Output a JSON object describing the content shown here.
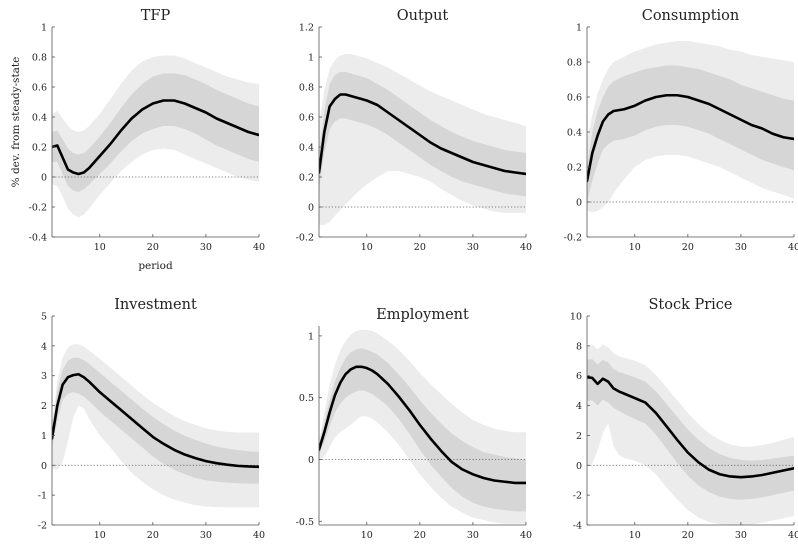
{
  "chart_data": [
    {
      "type": "line",
      "title": "TFP",
      "xlabel": "period",
      "ylabel": "% dev. from steady-state",
      "xlim": [
        1,
        40
      ],
      "ylim": [
        -0.4,
        1
      ],
      "xticks": [
        10,
        20,
        30,
        40
      ],
      "yticks": [
        -0.4,
        -0.2,
        0,
        0.2,
        0.4,
        0.6,
        0.8,
        1
      ],
      "ytick_labels": [
        "-0.4",
        "-0.2",
        "0",
        "0.2",
        "0.4",
        "0.6",
        "0.8",
        "1"
      ],
      "x": [
        1,
        2,
        3,
        4,
        5,
        6,
        7,
        8,
        10,
        12,
        14,
        16,
        18,
        20,
        22,
        24,
        26,
        28,
        30,
        32,
        34,
        36,
        38,
        40
      ],
      "series": [
        {
          "median": [
            0.2,
            0.21,
            0.13,
            0.05,
            0.03,
            0.02,
            0.03,
            0.06,
            0.14,
            0.22,
            0.31,
            0.39,
            0.45,
            0.49,
            0.51,
            0.51,
            0.49,
            0.46,
            0.43,
            0.39,
            0.36,
            0.33,
            0.3,
            0.28
          ],
          "inner_upper": [
            0.3,
            0.31,
            0.25,
            0.19,
            0.16,
            0.15,
            0.16,
            0.19,
            0.27,
            0.36,
            0.46,
            0.55,
            0.62,
            0.67,
            0.69,
            0.69,
            0.68,
            0.65,
            0.62,
            0.58,
            0.55,
            0.52,
            0.49,
            0.47
          ],
          "inner_lower": [
            0.1,
            0.1,
            0.02,
            -0.06,
            -0.09,
            -0.1,
            -0.08,
            -0.05,
            0.02,
            0.09,
            0.17,
            0.24,
            0.29,
            0.32,
            0.34,
            0.34,
            0.32,
            0.29,
            0.25,
            0.21,
            0.18,
            0.15,
            0.12,
            0.1
          ],
          "outer_upper": [
            0.42,
            0.44,
            0.39,
            0.34,
            0.31,
            0.3,
            0.31,
            0.34,
            0.42,
            0.52,
            0.62,
            0.71,
            0.77,
            0.8,
            0.81,
            0.81,
            0.79,
            0.76,
            0.73,
            0.7,
            0.67,
            0.65,
            0.63,
            0.62
          ],
          "outer_lower": [
            -0.05,
            -0.06,
            -0.13,
            -0.21,
            -0.25,
            -0.27,
            -0.25,
            -0.21,
            -0.12,
            -0.04,
            0.04,
            0.1,
            0.15,
            0.18,
            0.19,
            0.18,
            0.15,
            0.12,
            0.09,
            0.06,
            0.03,
            0.0,
            -0.02,
            -0.03
          ]
        }
      ]
    },
    {
      "type": "line",
      "title": "Output",
      "xlabel": "",
      "ylabel": "",
      "xlim": [
        1,
        40
      ],
      "ylim": [
        -0.2,
        1.2
      ],
      "xticks": [
        10,
        20,
        30,
        40
      ],
      "yticks": [
        -0.2,
        0,
        0.2,
        0.4,
        0.6,
        0.8,
        1,
        1.2
      ],
      "ytick_labels": [
        "-0.2",
        "0",
        "0.2",
        "0.4",
        "0.6",
        "0.8",
        "1",
        "1.2"
      ],
      "x": [
        1,
        2,
        3,
        4,
        5,
        6,
        7,
        8,
        10,
        12,
        14,
        16,
        18,
        20,
        22,
        24,
        26,
        28,
        30,
        32,
        34,
        36,
        38,
        40
      ],
      "series": [
        {
          "median": [
            0.23,
            0.5,
            0.67,
            0.72,
            0.75,
            0.75,
            0.74,
            0.73,
            0.71,
            0.68,
            0.63,
            0.58,
            0.53,
            0.48,
            0.43,
            0.39,
            0.36,
            0.33,
            0.3,
            0.28,
            0.26,
            0.24,
            0.23,
            0.22
          ],
          "inner_upper": [
            0.35,
            0.64,
            0.82,
            0.88,
            0.9,
            0.9,
            0.89,
            0.88,
            0.86,
            0.82,
            0.78,
            0.73,
            0.68,
            0.63,
            0.58,
            0.54,
            0.5,
            0.47,
            0.44,
            0.42,
            0.4,
            0.38,
            0.37,
            0.36
          ],
          "inner_lower": [
            0.12,
            0.36,
            0.52,
            0.57,
            0.59,
            0.59,
            0.58,
            0.57,
            0.55,
            0.52,
            0.48,
            0.43,
            0.38,
            0.33,
            0.28,
            0.24,
            0.2,
            0.17,
            0.15,
            0.13,
            0.11,
            0.09,
            0.08,
            0.07
          ],
          "outer_upper": [
            0.55,
            0.78,
            0.92,
            0.98,
            1.01,
            1.02,
            1.02,
            1.01,
            0.99,
            0.96,
            0.93,
            0.89,
            0.85,
            0.81,
            0.77,
            0.74,
            0.71,
            0.68,
            0.65,
            0.62,
            0.6,
            0.58,
            0.56,
            0.54
          ],
          "outer_lower": [
            -0.12,
            -0.12,
            -0.1,
            -0.06,
            -0.02,
            0.02,
            0.05,
            0.09,
            0.15,
            0.2,
            0.24,
            0.24,
            0.22,
            0.2,
            0.17,
            0.12,
            0.08,
            0.04,
            0.01,
            -0.01,
            -0.03,
            -0.04,
            -0.04,
            -0.04
          ]
        }
      ]
    },
    {
      "type": "line",
      "title": "Consumption",
      "xlabel": "",
      "ylabel": "",
      "xlim": [
        1,
        40
      ],
      "ylim": [
        -0.2,
        1
      ],
      "xticks": [
        10,
        20,
        30,
        40
      ],
      "yticks": [
        -0.2,
        0,
        0.2,
        0.4,
        0.6,
        0.8,
        1
      ],
      "ytick_labels": [
        "-0.2",
        "0",
        "0.2",
        "0.4",
        "0.6",
        "0.8",
        "1"
      ],
      "x": [
        1,
        2,
        3,
        4,
        5,
        6,
        8,
        10,
        12,
        14,
        16,
        18,
        20,
        22,
        24,
        26,
        28,
        30,
        32,
        34,
        36,
        38,
        40
      ],
      "series": [
        {
          "median": [
            0.12,
            0.28,
            0.38,
            0.46,
            0.5,
            0.52,
            0.53,
            0.55,
            0.58,
            0.6,
            0.61,
            0.61,
            0.6,
            0.58,
            0.56,
            0.53,
            0.5,
            0.47,
            0.44,
            0.42,
            0.39,
            0.37,
            0.36
          ],
          "inner_upper": [
            0.2,
            0.4,
            0.52,
            0.6,
            0.66,
            0.69,
            0.72,
            0.74,
            0.76,
            0.77,
            0.78,
            0.78,
            0.77,
            0.76,
            0.74,
            0.72,
            0.7,
            0.67,
            0.65,
            0.63,
            0.61,
            0.59,
            0.58
          ],
          "inner_lower": [
            0.0,
            0.12,
            0.22,
            0.3,
            0.33,
            0.35,
            0.36,
            0.38,
            0.41,
            0.43,
            0.44,
            0.44,
            0.43,
            0.41,
            0.39,
            0.36,
            0.33,
            0.3,
            0.27,
            0.24,
            0.22,
            0.2,
            0.18
          ],
          "outer_upper": [
            0.35,
            0.5,
            0.62,
            0.7,
            0.76,
            0.8,
            0.83,
            0.86,
            0.88,
            0.9,
            0.91,
            0.92,
            0.92,
            0.91,
            0.9,
            0.89,
            0.87,
            0.86,
            0.84,
            0.83,
            0.82,
            0.81,
            0.8
          ],
          "outer_lower": [
            -0.05,
            -0.06,
            -0.05,
            -0.03,
            0.0,
            0.05,
            0.13,
            0.2,
            0.24,
            0.26,
            0.27,
            0.27,
            0.26,
            0.24,
            0.22,
            0.2,
            0.17,
            0.14,
            0.11,
            0.08,
            0.06,
            0.04,
            0.02
          ]
        }
      ]
    },
    {
      "type": "line",
      "title": "Investment",
      "xlabel": "",
      "ylabel": "",
      "xlim": [
        1,
        40
      ],
      "ylim": [
        -2,
        5
      ],
      "xticks": [
        10,
        20,
        30,
        40
      ],
      "yticks": [
        -2,
        -1,
        0,
        1,
        2,
        3,
        4,
        5
      ],
      "ytick_labels": [
        "-2",
        "-1",
        "0",
        "1",
        "2",
        "3",
        "4",
        "5"
      ],
      "x": [
        1,
        2,
        3,
        4,
        5,
        6,
        7,
        8,
        10,
        12,
        14,
        16,
        18,
        20,
        22,
        24,
        26,
        28,
        30,
        32,
        34,
        36,
        38,
        40
      ],
      "series": [
        {
          "median": [
            0.9,
            2.0,
            2.7,
            2.95,
            3.02,
            3.05,
            2.95,
            2.8,
            2.45,
            2.15,
            1.85,
            1.55,
            1.25,
            0.95,
            0.72,
            0.52,
            0.36,
            0.24,
            0.14,
            0.07,
            0.02,
            -0.02,
            -0.04,
            -0.05
          ],
          "inner_upper": [
            1.2,
            2.5,
            3.2,
            3.5,
            3.6,
            3.6,
            3.52,
            3.4,
            3.1,
            2.8,
            2.5,
            2.2,
            1.9,
            1.62,
            1.38,
            1.17,
            0.99,
            0.85,
            0.73,
            0.63,
            0.56,
            0.51,
            0.47,
            0.45
          ],
          "inner_lower": [
            0.6,
            1.5,
            2.2,
            2.4,
            2.45,
            2.4,
            2.3,
            2.15,
            1.8,
            1.5,
            1.2,
            0.9,
            0.6,
            0.3,
            0.05,
            -0.15,
            -0.3,
            -0.42,
            -0.5,
            -0.55,
            -0.58,
            -0.6,
            -0.61,
            -0.62
          ],
          "outer_upper": [
            1.3,
            2.8,
            3.6,
            3.95,
            4.05,
            4.05,
            3.98,
            3.85,
            3.57,
            3.27,
            2.97,
            2.67,
            2.37,
            2.1,
            1.86,
            1.65,
            1.48,
            1.35,
            1.24,
            1.17,
            1.12,
            1.1,
            1.1,
            1.1
          ],
          "outer_lower": [
            -0.1,
            -0.15,
            0.1,
            0.8,
            1.6,
            2.0,
            1.9,
            1.55,
            1.0,
            0.6,
            0.15,
            -0.25,
            -0.55,
            -0.8,
            -1.0,
            -1.15,
            -1.25,
            -1.33,
            -1.38,
            -1.4,
            -1.41,
            -1.41,
            -1.41,
            -1.41
          ]
        }
      ]
    },
    {
      "type": "line",
      "title": "Employment",
      "xlabel": "",
      "ylabel": "",
      "xlim": [
        1,
        40
      ],
      "ylim": [
        -0.53,
        1.08
      ],
      "xticks": [
        10,
        20,
        30,
        40
      ],
      "yticks": [
        -0.5,
        0,
        0.5,
        1
      ],
      "ytick_labels": [
        "-0.5",
        "0",
        "0.5",
        "1"
      ],
      "x": [
        1,
        2,
        3,
        4,
        5,
        6,
        7,
        8,
        9,
        10,
        11,
        12,
        14,
        16,
        18,
        20,
        22,
        24,
        26,
        28,
        30,
        32,
        34,
        36,
        38,
        40
      ],
      "series": [
        {
          "median": [
            0.08,
            0.22,
            0.38,
            0.52,
            0.62,
            0.69,
            0.73,
            0.75,
            0.75,
            0.74,
            0.72,
            0.69,
            0.61,
            0.51,
            0.4,
            0.28,
            0.17,
            0.07,
            -0.02,
            -0.08,
            -0.12,
            -0.15,
            -0.17,
            -0.18,
            -0.19,
            -0.19
          ],
          "inner_upper": [
            0.12,
            0.3,
            0.48,
            0.63,
            0.74,
            0.82,
            0.87,
            0.89,
            0.9,
            0.89,
            0.87,
            0.85,
            0.78,
            0.69,
            0.59,
            0.48,
            0.38,
            0.29,
            0.21,
            0.15,
            0.1,
            0.06,
            0.04,
            0.02,
            0.01,
            0.0
          ],
          "inner_lower": [
            0.04,
            0.14,
            0.27,
            0.38,
            0.45,
            0.5,
            0.53,
            0.55,
            0.56,
            0.55,
            0.53,
            0.5,
            0.43,
            0.33,
            0.21,
            0.08,
            -0.04,
            -0.14,
            -0.23,
            -0.3,
            -0.35,
            -0.38,
            -0.4,
            -0.41,
            -0.42,
            -0.42
          ],
          "outer_upper": [
            0.14,
            0.38,
            0.6,
            0.77,
            0.88,
            0.96,
            1.01,
            1.04,
            1.05,
            1.05,
            1.04,
            1.02,
            0.96,
            0.89,
            0.8,
            0.7,
            0.61,
            0.53,
            0.45,
            0.38,
            0.32,
            0.28,
            0.25,
            0.23,
            0.22,
            0.22
          ],
          "outer_lower": [
            0.0,
            0.02,
            0.1,
            0.18,
            0.22,
            0.25,
            0.28,
            0.32,
            0.35,
            0.35,
            0.33,
            0.3,
            0.22,
            0.12,
            0.0,
            -0.12,
            -0.22,
            -0.31,
            -0.38,
            -0.43,
            -0.47,
            -0.49,
            -0.51,
            -0.52,
            -0.52,
            -0.52
          ]
        }
      ]
    },
    {
      "type": "line",
      "title": "Stock Price",
      "xlabel": "",
      "ylabel": "",
      "xlim": [
        1,
        40
      ],
      "ylim": [
        -4,
        10
      ],
      "xticks": [
        10,
        20,
        30,
        40
      ],
      "yticks": [
        -4,
        -2,
        0,
        2,
        4,
        6,
        8,
        10
      ],
      "ytick_labels": [
        "-4",
        "-2",
        "0",
        "2",
        "4",
        "6",
        "8",
        "10"
      ],
      "x": [
        1,
        2,
        3,
        4,
        5,
        6,
        7,
        8,
        10,
        12,
        14,
        16,
        18,
        20,
        22,
        24,
        26,
        28,
        30,
        32,
        34,
        36,
        38,
        40
      ],
      "series": [
        {
          "median": [
            5.9,
            5.85,
            5.45,
            5.8,
            5.6,
            5.15,
            4.95,
            4.8,
            4.5,
            4.2,
            3.5,
            2.6,
            1.7,
            0.85,
            0.2,
            -0.3,
            -0.6,
            -0.75,
            -0.8,
            -0.75,
            -0.65,
            -0.5,
            -0.35,
            -0.2
          ],
          "inner_upper": [
            7.1,
            7.1,
            6.75,
            7.05,
            6.9,
            6.45,
            6.25,
            6.15,
            5.9,
            5.6,
            4.95,
            4.1,
            3.25,
            2.4,
            1.7,
            1.15,
            0.75,
            0.5,
            0.35,
            0.3,
            0.35,
            0.45,
            0.55,
            0.65
          ],
          "inner_lower": [
            4.3,
            4.35,
            4.0,
            4.4,
            4.2,
            3.85,
            3.65,
            3.45,
            3.1,
            2.8,
            2.05,
            1.1,
            0.15,
            -0.7,
            -1.35,
            -1.8,
            -2.1,
            -2.25,
            -2.3,
            -2.25,
            -2.15,
            -2.0,
            -1.85,
            -1.7
          ],
          "outer_upper": [
            8.0,
            8.1,
            7.75,
            8.1,
            7.9,
            7.5,
            7.3,
            7.2,
            7.0,
            6.7,
            6.05,
            5.2,
            4.35,
            3.5,
            2.75,
            2.15,
            1.7,
            1.4,
            1.25,
            1.25,
            1.35,
            1.5,
            1.7,
            1.9
          ],
          "outer_lower": [
            0.0,
            0.1,
            1.0,
            2.2,
            2.8,
            1.3,
            0.7,
            0.5,
            0.3,
            0.0,
            -0.6,
            -1.5,
            -2.3,
            -3.0,
            -3.5,
            -3.8,
            -3.95,
            -3.98,
            -3.98,
            -3.95,
            -3.85,
            -3.7,
            -3.55,
            -3.4
          ]
        }
      ]
    }
  ],
  "style": {
    "outer_band_color": "#ececec",
    "inner_band_color": "#d6d6d6",
    "median_color": "#000000",
    "zero_line_color": "#555555"
  }
}
